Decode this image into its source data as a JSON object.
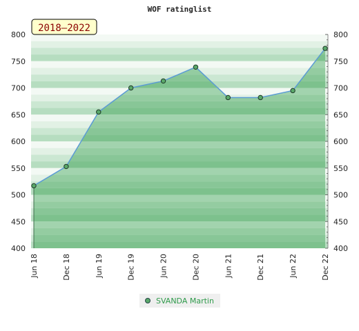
{
  "chart_data": {
    "type": "area",
    "title": "WOF ratinglist",
    "period_label": "2018–2022",
    "x": [
      "Jun 18",
      "Dec 18",
      "Jun 19",
      "Dec 19",
      "Jun 20",
      "Dec 20",
      "Jun 21",
      "Dec 21",
      "Jun 22",
      "Dec 22"
    ],
    "series": [
      {
        "name": "SVANDA Martin",
        "values": [
          517,
          553,
          655,
          700,
          713,
          739,
          682,
          682,
          695,
          774
        ]
      }
    ],
    "ylim": [
      400,
      800
    ],
    "yticks": [
      400,
      450,
      500,
      550,
      600,
      650,
      700,
      750,
      800
    ],
    "grid": true,
    "legend_position": "bottom",
    "colors": {
      "line": "#5b9bd5",
      "marker": "#5aa86a",
      "area": "#8cc99c"
    }
  }
}
